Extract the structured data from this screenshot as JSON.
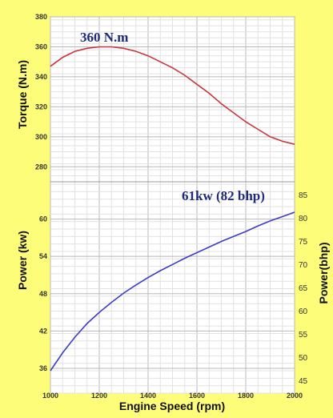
{
  "chart_data": {
    "type": "line",
    "xlabel": "Engine Speed (rpm)",
    "x_ticks": [
      1000,
      1200,
      1400,
      1600,
      1800,
      2000
    ],
    "xlim": [
      1000,
      2000
    ],
    "panels": [
      {
        "ylabel": "Torque (N.m)",
        "ylim": [
          270,
          380
        ],
        "y_ticks": [
          280,
          300,
          320,
          340,
          360,
          380
        ],
        "annotation": "360 N.m",
        "series": [
          {
            "color": "#c8353c",
            "x": [
              1000,
              1050,
              1100,
              1150,
              1200,
              1250,
              1300,
              1350,
              1400,
              1450,
              1500,
              1550,
              1600,
              1650,
              1700,
              1750,
              1800,
              1850,
              1900,
              1950,
              2000
            ],
            "y": [
              347,
              353,
              357,
              359,
              360,
              360,
              359,
              357,
              354,
              350,
              346,
              341,
              335,
              329,
              322,
              316,
              310,
              305,
              300,
              297,
              295
            ]
          }
        ]
      },
      {
        "ylabel": "Power (kw)",
        "ylabel_right": "Power(bhp)",
        "ylim": [
          32,
          66
        ],
        "y_ticks": [
          36,
          42,
          48,
          54,
          60
        ],
        "ylim_right": [
          42.2,
          87.8
        ],
        "y_ticks_right": [
          45,
          50,
          55,
          60,
          65,
          70,
          75,
          80,
          85
        ],
        "annotation": "61kw (82 bhp)",
        "series": [
          {
            "color": "#3d3dc4",
            "x": [
              1000,
              1050,
              1100,
              1150,
              1200,
              1250,
              1300,
              1350,
              1400,
              1450,
              1500,
              1550,
              1600,
              1650,
              1700,
              1750,
              1800,
              1850,
              1900,
              1950,
              2000
            ],
            "y": [
              35.6,
              38.5,
              41.0,
              43.2,
              45.0,
              46.6,
              48.1,
              49.4,
              50.6,
              51.7,
              52.7,
              53.7,
              54.6,
              55.5,
              56.4,
              57.2,
              58.0,
              58.9,
              59.7,
              60.4,
              61.1
            ]
          }
        ]
      }
    ],
    "grid": true,
    "background": "#ffffff",
    "page_background": "#fdfd7a",
    "annotation_color": "#1f2a7a"
  }
}
